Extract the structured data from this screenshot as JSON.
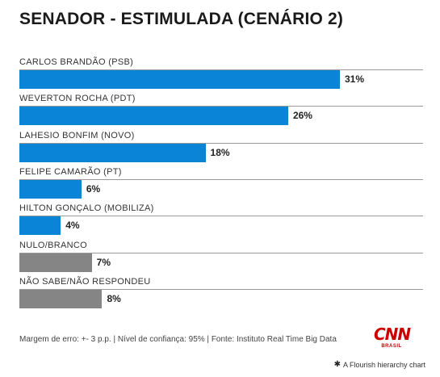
{
  "title": "SENADOR - ESTIMULADA (CENÁRIO 2)",
  "chart_data": {
    "type": "bar",
    "orientation": "horizontal",
    "categories": [
      "CARLOS BRANDÃO (PSB)",
      "WEVERTON ROCHA (PDT)",
      "LAHESIO BONFIM (NOVO)",
      "FELIPE CAMARÃO (PT)",
      "HILTON GONÇALO (MOBILIZA)",
      "NULO/BRANCO",
      "NÃO SABE/NÃO RESPONDEU"
    ],
    "values": [
      31,
      26,
      18,
      6,
      4,
      7,
      8
    ],
    "value_labels": [
      "31%",
      "26%",
      "18%",
      "6%",
      "4%",
      "7%",
      "8%"
    ],
    "colors": [
      "#0a84d6",
      "#0a84d6",
      "#0a84d6",
      "#0a84d6",
      "#0a84d6",
      "#858585",
      "#858585"
    ],
    "xlim": [
      0,
      31
    ]
  },
  "footer": {
    "note": "Margem de erro: +- 3 p.p. | Nível de confiança: 95% | Fonte: Instituto Real Time Big Data",
    "logo_text": "CNN",
    "logo_subtext": "BRASIL",
    "credit": "A Flourish hierarchy chart",
    "credit_icon": "flourish-asterisk-icon"
  }
}
